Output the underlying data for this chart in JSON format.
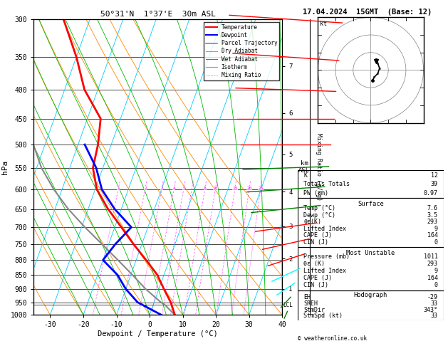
{
  "title_left": "50°31'N  1°37'E  30m ASL",
  "title_right": "17.04.2024  15GMT  (Base: 12)",
  "xlabel": "Dewpoint / Temperature (°C)",
  "ylabel_left": "hPa",
  "pressure_levels": [
    300,
    350,
    400,
    450,
    500,
    550,
    600,
    650,
    700,
    750,
    800,
    850,
    900,
    950,
    1000
  ],
  "temp_min": -35,
  "temp_max": 40,
  "pres_min": 300,
  "pres_max": 1000,
  "km_ticks": [
    1,
    2,
    3,
    4,
    5,
    6,
    7
  ],
  "km_pressures": [
    899,
    795,
    697,
    606,
    520,
    440,
    363
  ],
  "lcl_pressure": 960,
  "temp_profile_p": [
    1000,
    950,
    900,
    850,
    800,
    750,
    700,
    650,
    600,
    550,
    500,
    450,
    400,
    350,
    300
  ],
  "temp_profile_t": [
    7.6,
    5.0,
    1.5,
    -2.0,
    -7.0,
    -12.5,
    -18.0,
    -24.0,
    -29.5,
    -33.0,
    -34.0,
    -36.0,
    -44.0,
    -50.0,
    -58.0
  ],
  "dewp_profile_p": [
    1000,
    950,
    900,
    850,
    800,
    750,
    700,
    650,
    600,
    550,
    500
  ],
  "dewp_profile_t": [
    3.5,
    -5.0,
    -10.0,
    -14.0,
    -20.0,
    -18.0,
    -15.0,
    -22.0,
    -28.0,
    -32.0,
    -38.0
  ],
  "parcel_profile_p": [
    1000,
    960,
    950,
    900,
    850,
    800,
    750,
    700,
    650,
    600,
    550,
    500,
    450,
    400,
    350,
    300
  ],
  "parcel_profile_t": [
    7.6,
    3.5,
    2.0,
    -4.0,
    -9.5,
    -15.5,
    -22.0,
    -29.0,
    -36.0,
    -42.5,
    -48.5,
    -53.5,
    -58.5,
    -63.5,
    -68.5,
    -73.5
  ],
  "isotherm_color": "#00CCFF",
  "dry_adiabat_color": "#FF8800",
  "wet_adiabat_color": "#00BB00",
  "mixing_ratio_color": "#FF00FF",
  "temp_color": "red",
  "dewp_color": "blue",
  "parcel_color": "#888888",
  "info_K": 12,
  "info_TT": 39,
  "info_PW": 0.97,
  "surf_temp": 7.6,
  "surf_dewp": 3.5,
  "surf_theta_e": 293,
  "surf_LI": 9,
  "surf_CAPE": 164,
  "surf_CIN": 0,
  "mu_pres": 1011,
  "mu_theta_e": 293,
  "mu_LI": 9,
  "mu_CAPE": 164,
  "mu_CIN": 0,
  "hodo_EH": -29,
  "hodo_SREH": 33,
  "hodo_StmDir": 343,
  "hodo_StmSpd": 33,
  "skew": 32
}
